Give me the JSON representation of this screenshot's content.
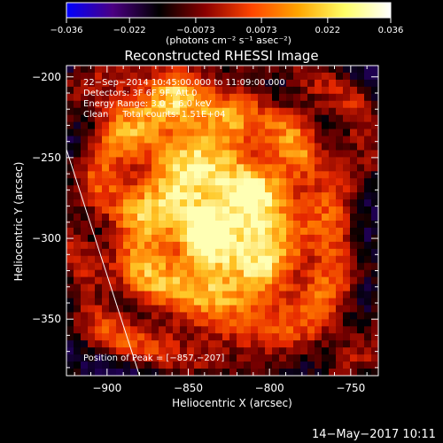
{
  "chart_data": {
    "type": "heatmap",
    "title": "Reconstructed RHESSI Image",
    "xlabel": "Heliocentric X (arcsec)",
    "ylabel": "Heliocentric Y (arcsec)",
    "xlim": [
      -925,
      -733
    ],
    "ylim": [
      -385,
      -193
    ],
    "x_ticks": [
      -900,
      -850,
      -800,
      -750
    ],
    "x_tick_labels": [
      "−900",
      "−850",
      "−800",
      "−750"
    ],
    "y_ticks": [
      -200,
      -250,
      -300,
      -350
    ],
    "y_tick_labels": [
      "−200",
      "−250",
      "−300",
      "−350"
    ],
    "colorbar": {
      "range": [
        -0.036,
        0.036
      ],
      "ticks": [
        -0.036,
        -0.022,
        -0.0073,
        0.0073,
        0.022,
        0.036
      ],
      "tick_labels": [
        "−0.036",
        "−0.022",
        "−0.0073",
        "0.0073",
        "0.022",
        "0.036"
      ],
      "units_label": "(photons cm⁻² s⁻¹ asec⁻²)",
      "colors": [
        "#0000ff",
        "#4b0082",
        "#000000",
        "#8b0000",
        "#ff4500",
        "#ffa500",
        "#ffff66",
        "#ffffff"
      ]
    },
    "annotations": [
      "22−Sep−2014 10:45:00.000 to 11:09:00.000",
      "Detectors: 3F 6F 9F, Att 0",
      "Energy Range: 3.0 − 6.0 keV",
      "Clean     Total counts: 1.51E+04"
    ],
    "peak_label": "Position of Peak = [−857,−207]",
    "peak": [
      -857,
      -207
    ],
    "limb_line": [
      [
        -925,
        -245
      ],
      [
        -880,
        -385
      ]
    ]
  },
  "footer_timestamp": "14−May−2017 10:11"
}
